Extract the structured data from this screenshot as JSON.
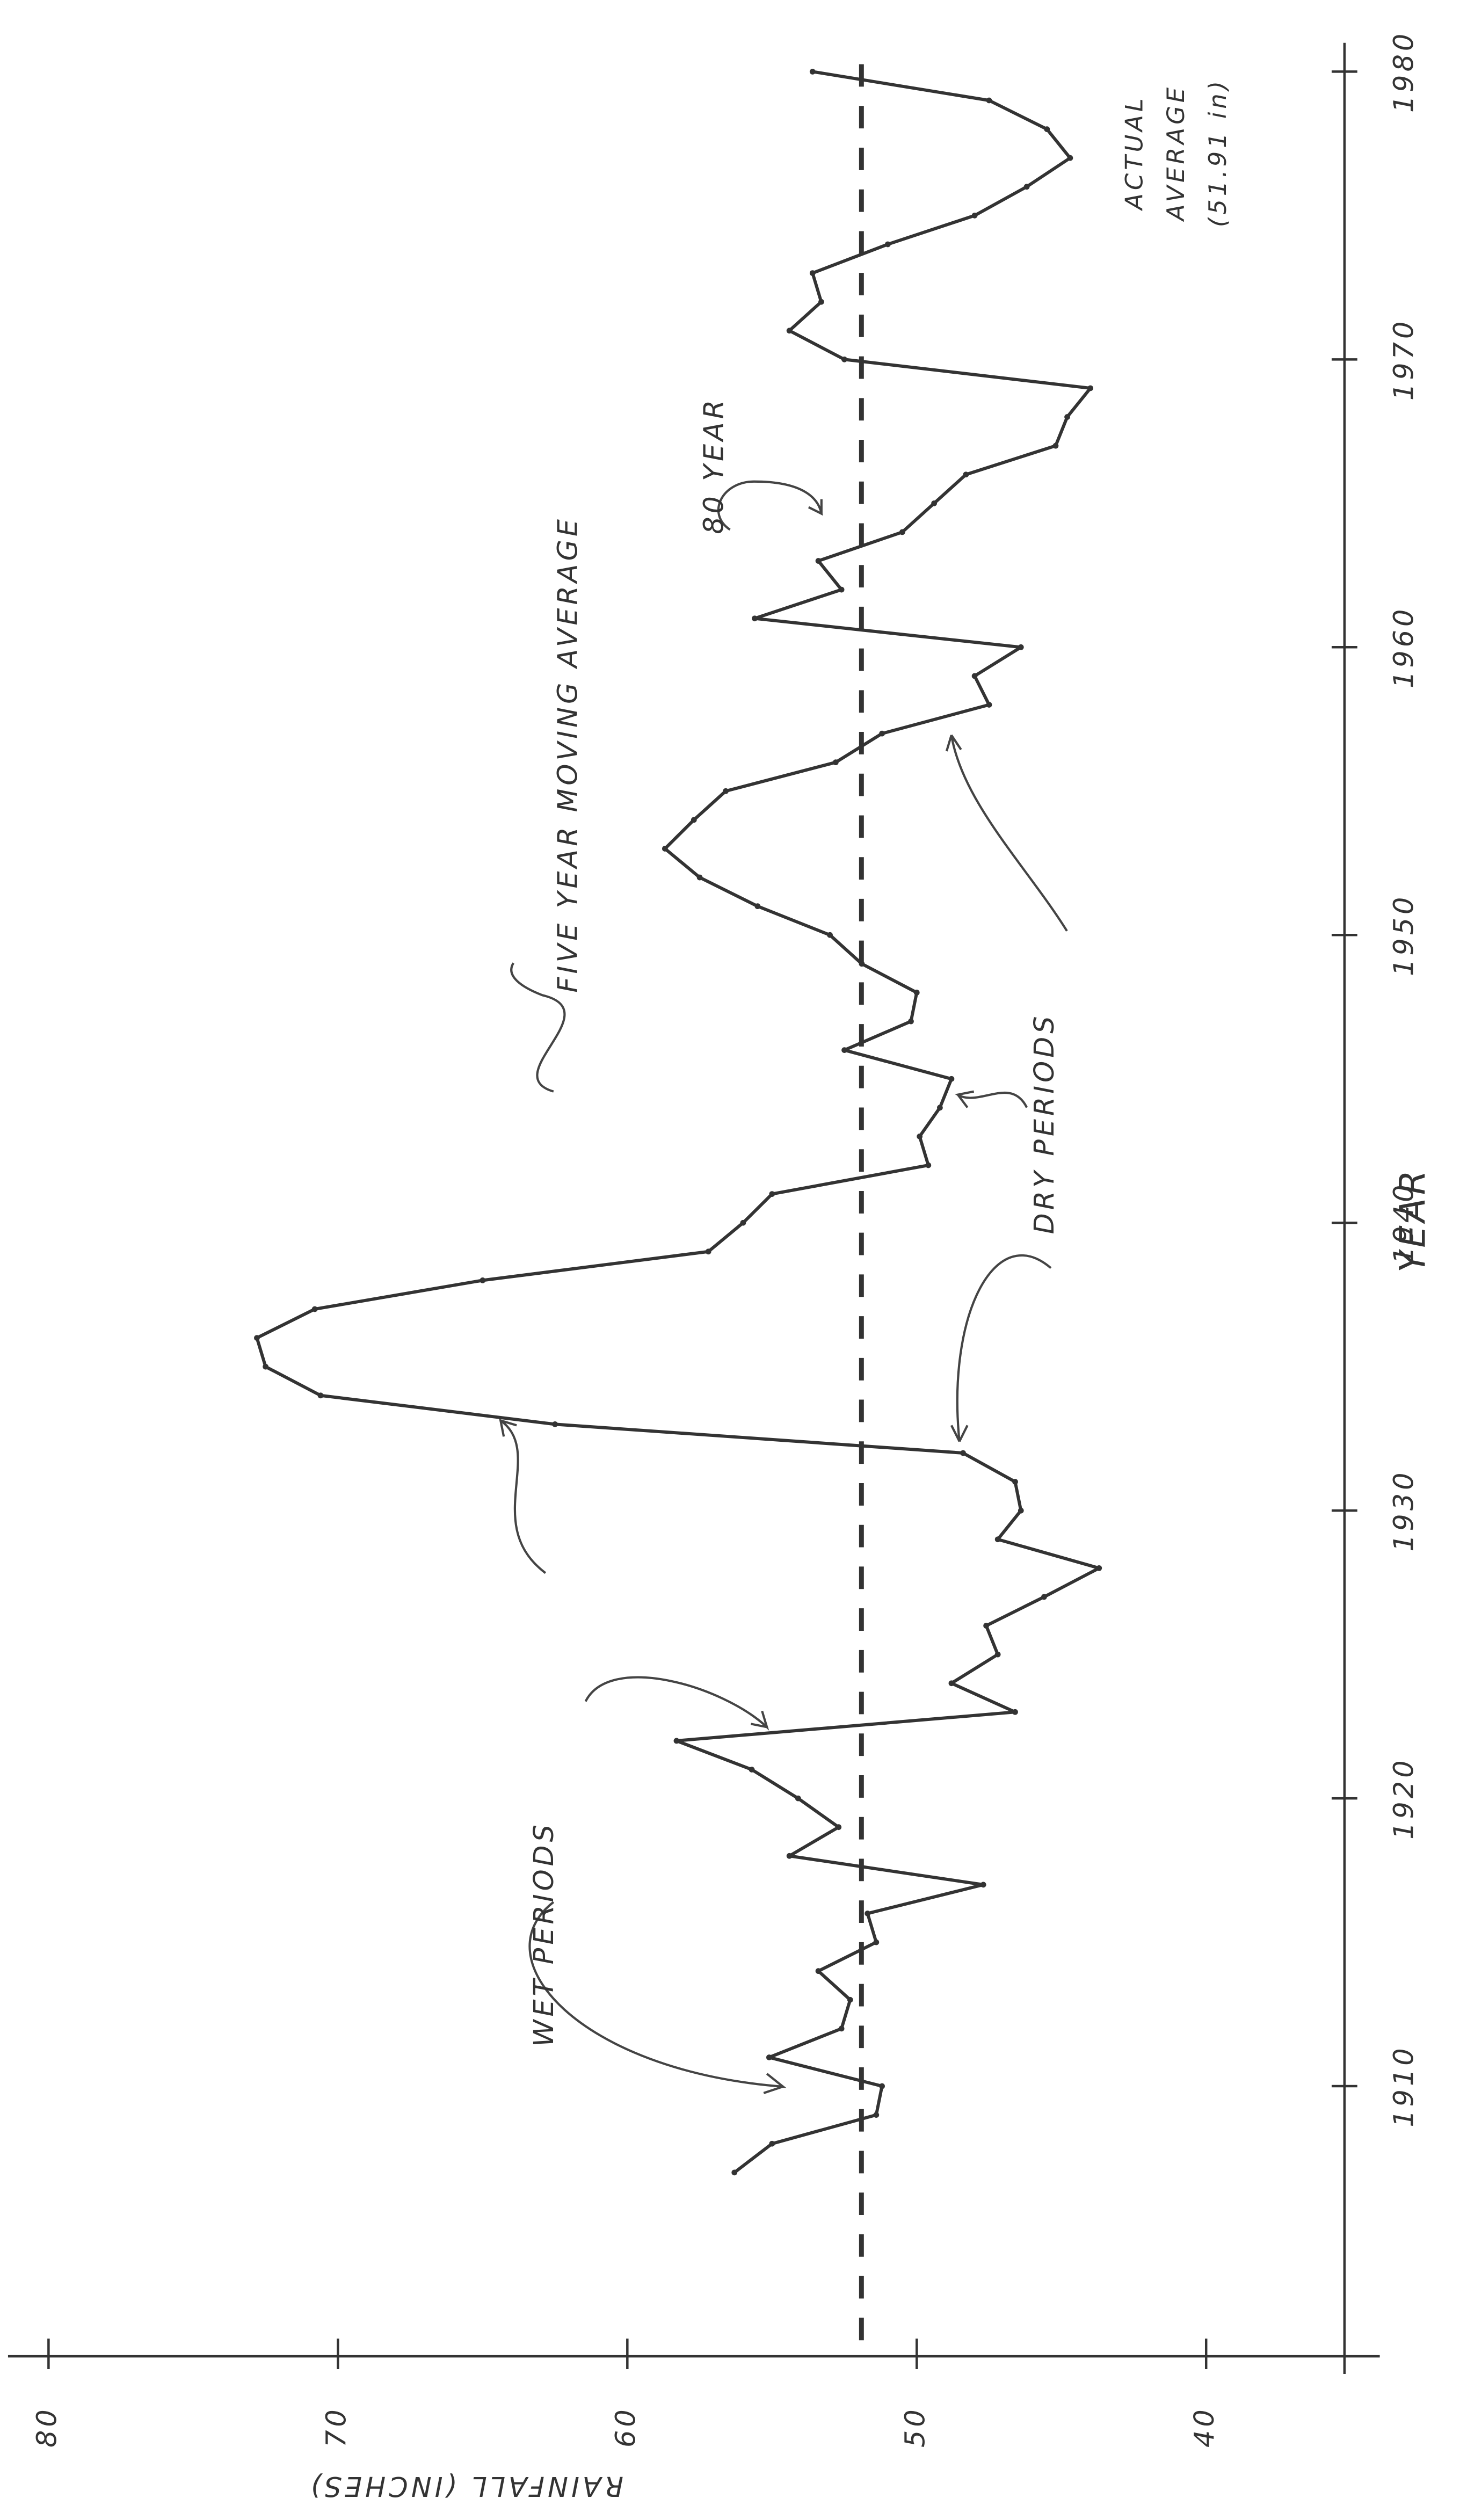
{
  "chart_data": {
    "type": "line",
    "xlabel": "YEAR",
    "ylabel": "RAINFALL (INCHES)",
    "annotations": [
      "FIVE YEAR MOVING AVERAGE",
      "WET PERIODS",
      "DRY PERIODS",
      "80 YEAR",
      "ACTUAL",
      "AVERAGE",
      "(51.91 in)"
    ],
    "average": 51.91,
    "x": [
      1907,
      1908,
      1909,
      1910,
      1911,
      1912,
      1913,
      1914,
      1915,
      1916,
      1917,
      1918,
      1919,
      1920,
      1921,
      1922,
      1923,
      1924,
      1925,
      1926,
      1927,
      1928,
      1929,
      1930,
      1931,
      1932,
      1933,
      1934,
      1935,
      1936,
      1937,
      1938,
      1939,
      1940,
      1941,
      1942,
      1943,
      1944,
      1945,
      1946,
      1947,
      1948,
      1949,
      1950,
      1951,
      1952,
      1953,
      1954,
      1955,
      1956,
      1957,
      1958,
      1959,
      1960,
      1961,
      1962,
      1963,
      1964,
      1965,
      1966,
      1967,
      1968,
      1969,
      1970,
      1971,
      1972,
      1973,
      1974,
      1975,
      1976,
      1977,
      1978,
      1979,
      1980
    ],
    "series": [
      {
        "color": "#333333",
        "values": [
          56.3,
          55.0,
          51.4,
          51.2,
          55.1,
          52.6,
          52.3,
          53.4,
          51.4,
          51.7,
          47.7,
          54.4,
          52.7,
          54.1,
          55.7,
          58.3,
          46.6,
          48.8,
          47.2,
          47.6,
          45.6,
          43.7,
          47.2,
          46.4,
          46.6,
          48.4,
          62.5,
          70.6,
          72.5,
          72.8,
          70.8,
          65.0,
          57.2,
          56.0,
          55.0,
          49.6,
          49.9,
          49.2,
          48.8,
          52.5,
          50.2,
          50.0,
          51.9,
          53.0,
          55.5,
          57.5,
          58.7,
          57.7,
          56.6,
          52.8,
          51.2,
          47.5,
          48.0,
          46.4,
          55.6,
          52.6,
          53.4,
          50.5,
          49.4,
          48.3,
          45.2,
          44.8,
          44.0,
          52.5,
          54.4,
          53.3,
          53.6,
          51.0,
          48.0,
          46.2,
          44.7,
          45.5,
          47.5,
          53.6
        ]
      }
    ],
    "xlim": [
      1900,
      1981
    ],
    "xticks": [
      1910,
      1920,
      1930,
      1940,
      1950,
      1960,
      1970,
      1980
    ],
    "ylim": [
      34,
      81.4
    ],
    "yticks": [
      80,
      70,
      60,
      50,
      40
    ]
  }
}
